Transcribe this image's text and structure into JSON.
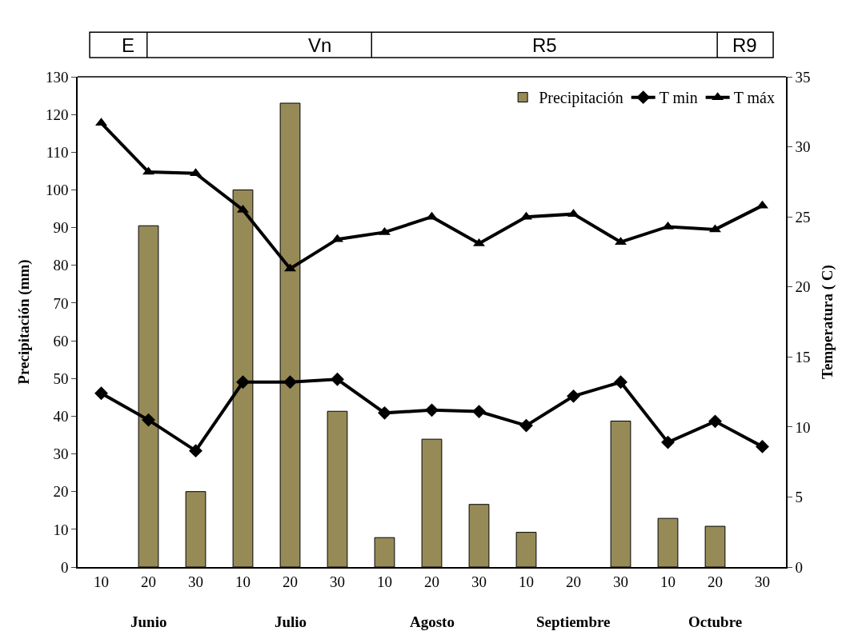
{
  "chart_data": {
    "type": "bar",
    "categories": [
      "10",
      "20",
      "30",
      "10",
      "20",
      "30",
      "10",
      "20",
      "30",
      "10",
      "20",
      "30",
      "10",
      "20",
      "30"
    ],
    "series": [
      {
        "name": "Precipitación",
        "color": "#968b56",
        "values": [
          null,
          90.5,
          20,
          100,
          123,
          41.3,
          7.8,
          33.9,
          16.6,
          9.2,
          null,
          38.7,
          12.9,
          10.8,
          null
        ]
      },
      {
        "name": "T min",
        "type": "line",
        "axis": "y2",
        "marker": "diamond",
        "color": "#000000",
        "values": [
          12.4,
          10.5,
          8.3,
          13.2,
          13.2,
          13.4,
          11.0,
          11.2,
          11.1,
          10.1,
          12.2,
          13.2,
          8.9,
          10.4,
          8.6
        ]
      },
      {
        "name": "T máx",
        "type": "line",
        "axis": "y2",
        "marker": "triangle",
        "color": "#000000",
        "values": [
          31.7,
          28.2,
          28.1,
          25.5,
          21.3,
          23.4,
          23.9,
          25.0,
          23.1,
          25.0,
          25.2,
          23.2,
          24.3,
          24.1,
          25.8
        ]
      }
    ],
    "ylabel": "Precipitación (mm)",
    "y2label": "Temperatura ( C)",
    "ylim": [
      0,
      130
    ],
    "yticks": [
      0,
      10,
      20,
      30,
      40,
      50,
      60,
      70,
      80,
      90,
      100,
      110,
      120,
      130
    ],
    "y2lim": [
      0,
      35
    ],
    "y2ticks": [
      0,
      5,
      10,
      15,
      20,
      25,
      30,
      35
    ],
    "legend": "top right",
    "annotations": [
      "E",
      "Vn",
      "R5",
      "R9",
      "Junio",
      "Julio",
      "Agosto",
      "Septiembre",
      "Octubre"
    ]
  }
}
